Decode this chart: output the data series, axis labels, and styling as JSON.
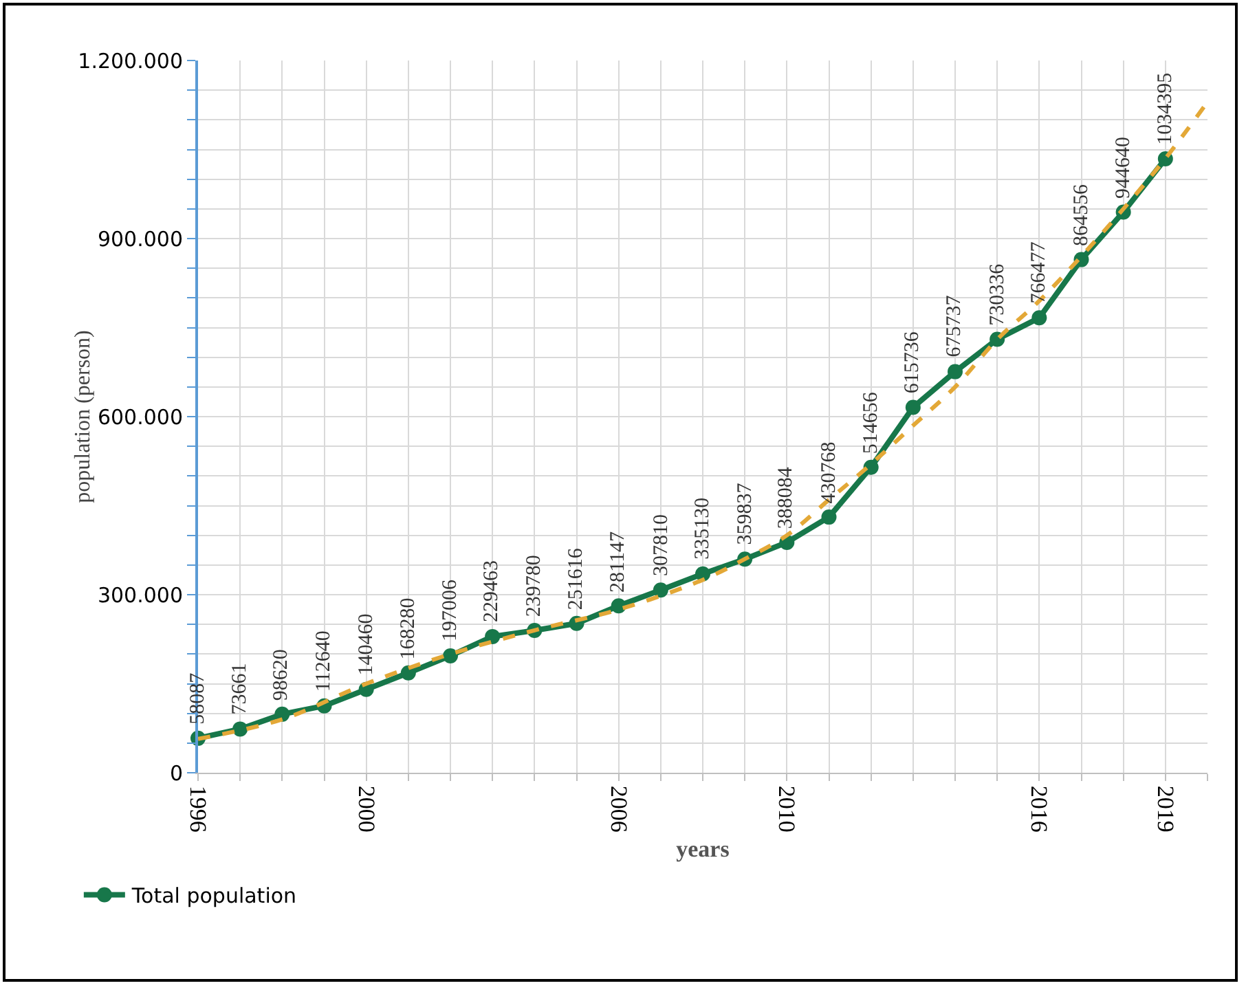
{
  "chart_data": {
    "type": "line",
    "xlabel": "years",
    "ylabel": "population (person)",
    "xlim": [
      1996,
      2020
    ],
    "ylim": [
      0,
      1200000
    ],
    "xticks": [
      1996,
      {
        "value": 1997,
        "label": null
      },
      {
        "value": 1998,
        "label": null
      },
      {
        "value": 1999,
        "label": null
      },
      2000,
      {
        "value": 2001,
        "label": null
      },
      {
        "value": 2002,
        "label": null
      },
      {
        "value": 2003,
        "label": null
      },
      {
        "value": 2004,
        "label": null
      },
      {
        "value": 2005,
        "label": null
      },
      2006,
      {
        "value": 2007,
        "label": null
      },
      {
        "value": 2008,
        "label": null
      },
      {
        "value": 2009,
        "label": null
      },
      2010,
      {
        "value": 2011,
        "label": null
      },
      {
        "value": 2012,
        "label": null
      },
      {
        "value": 2013,
        "label": null
      },
      {
        "value": 2014,
        "label": null
      },
      {
        "value": 2015,
        "label": null
      },
      2016,
      {
        "value": 2017,
        "label": null
      },
      {
        "value": 2018,
        "label": null
      },
      2019,
      {
        "value": 2020,
        "label": null
      }
    ],
    "yticks": [
      0,
      {
        "value": 50000,
        "label": null
      },
      {
        "value": 100000,
        "label": null
      },
      {
        "value": 150000,
        "label": null
      },
      {
        "value": 200000,
        "label": null
      },
      {
        "value": 250000,
        "label": null
      },
      {
        "value": 300000,
        "label": "300.000"
      },
      {
        "value": 350000,
        "label": null
      },
      {
        "value": 400000,
        "label": null
      },
      {
        "value": 450000,
        "label": null
      },
      {
        "value": 500000,
        "label": null
      },
      {
        "value": 550000,
        "label": null
      },
      {
        "value": 600000,
        "label": "600.000"
      },
      {
        "value": 650000,
        "label": null
      },
      {
        "value": 700000,
        "label": null
      },
      {
        "value": 750000,
        "label": null
      },
      {
        "value": 800000,
        "label": null
      },
      {
        "value": 850000,
        "label": null
      },
      {
        "value": 900000,
        "label": "900.000"
      },
      {
        "value": 950000,
        "label": null
      },
      {
        "value": 1000000,
        "label": null
      },
      {
        "value": 1050000,
        "label": null
      },
      {
        "value": 1100000,
        "label": null
      },
      {
        "value": 1150000,
        "label": null
      },
      {
        "value": 1200000,
        "label": "1.200.000"
      }
    ],
    "grid": true,
    "legend": "bottom left",
    "marker": "circle",
    "series": [
      {
        "name": "Total population",
        "color": "#17774a",
        "line_style": "solid",
        "x": [
          1996,
          1997,
          1998,
          1999,
          2000,
          2001,
          2002,
          2003,
          2004,
          2005,
          2006,
          2007,
          2008,
          2009,
          2010,
          2011,
          2012,
          2013,
          2014,
          2015,
          2016,
          2017,
          2018,
          2019
        ],
        "values": [
          58087,
          73661,
          98620,
          112640,
          140460,
          168280,
          197006,
          229463,
          239780,
          251616,
          281147,
          307810,
          335130,
          359837,
          388084,
          430768,
          514656,
          615736,
          675737,
          730336,
          766477,
          864556,
          944640,
          1034395
        ],
        "value_labels": [
          "58087",
          "73661",
          "98620",
          "112640",
          "140460",
          "168280",
          "197006",
          "229463",
          "239780",
          "251616",
          "281147",
          "307810",
          "335130",
          "359837",
          "388084",
          "430768",
          "514656",
          "615736",
          "675737",
          "730336",
          "766477",
          "864556",
          "944640",
          "1034395"
        ]
      },
      {
        "type": "line",
        "color": "#e3a837",
        "line_style": "dashed",
        "marker": "none",
        "x": [
          1996,
          1998,
          2000,
          2002,
          2004,
          2006,
          2008,
          2009,
          2010,
          2011,
          2012,
          2013,
          2014,
          2015,
          2016,
          2017,
          2018,
          2019,
          2020
        ],
        "values": [
          57000,
          90000,
          150000,
          200000,
          240000,
          275000,
          325000,
          360000,
          400000,
          460000,
          520000,
          585000,
          650000,
          730000,
          795000,
          870000,
          950000,
          1035000,
          1130000
        ]
      }
    ]
  }
}
